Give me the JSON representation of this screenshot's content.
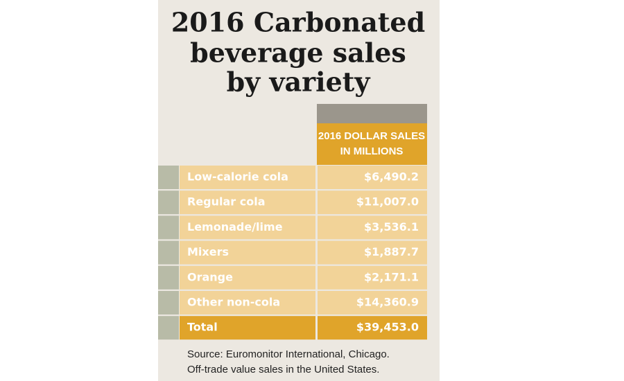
{
  "title": [
    "2016 Carbonated",
    "beverage sales",
    "by variety"
  ],
  "table": {
    "header": [
      "2016 DOLLAR SALES",
      "IN MILLIONS"
    ],
    "rows": [
      [
        "Low-calorie cola",
        "$6,490.2"
      ],
      [
        "Regular cola",
        "$11,007.0"
      ],
      [
        "Lemonade/lime",
        "$3,536.1"
      ],
      [
        "Mixers",
        "$1,887.7"
      ],
      [
        "Orange",
        "$2,171.1"
      ],
      [
        "Other non-cola",
        "$14,360.9"
      ]
    ],
    "total": [
      "Total",
      "$39,453.0"
    ]
  },
  "source": [
    "Source: Euromonitor International, Chicago.",
    "Off-trade value sales in the United States."
  ]
}
